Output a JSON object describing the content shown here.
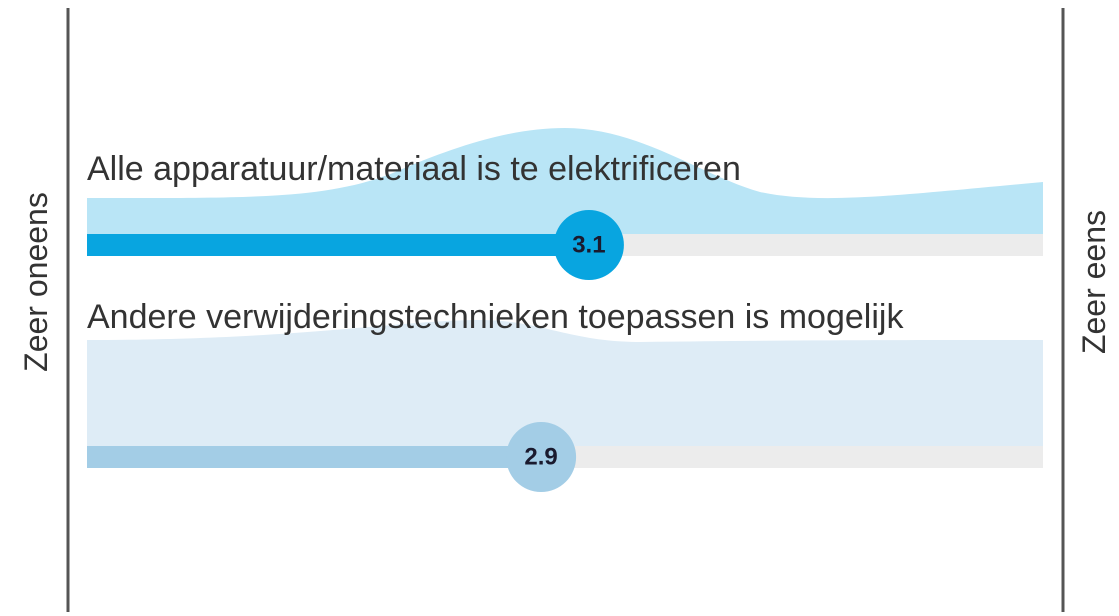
{
  "chart_data": {
    "type": "bar",
    "categories": [
      "Alle apparatuur/materiaal is te elektrificeren",
      "Andere verwijderingstechnieken toepassen is mogelijk"
    ],
    "values": [
      3.1,
      2.9
    ],
    "xlim": [
      1,
      5
    ],
    "scale_labels": [
      "Zeer oneens",
      "Zeer eens"
    ],
    "colors": [
      "#08a5e0",
      "#a3cde6"
    ],
    "density_colors": [
      "#b9e5f6",
      "#deecf6"
    ]
  }
}
